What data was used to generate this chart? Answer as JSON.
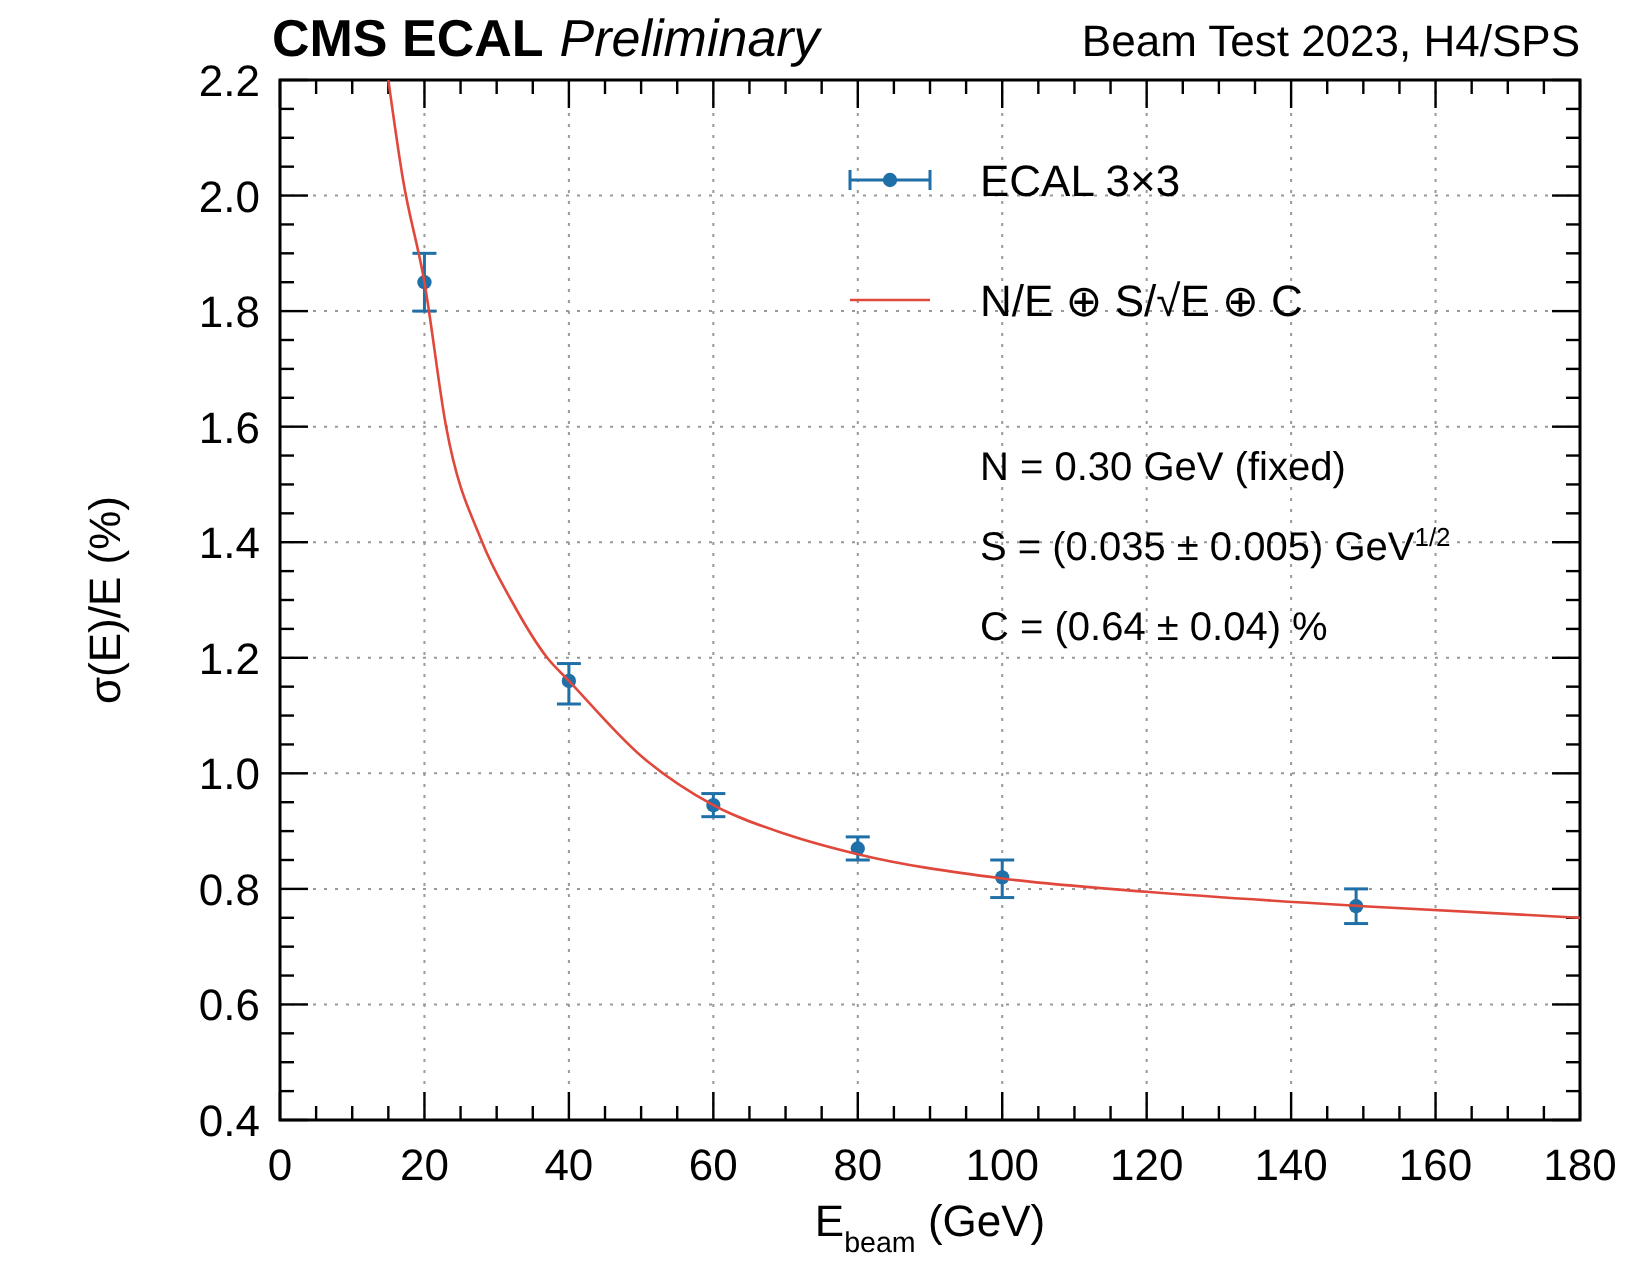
{
  "chart_data": {
    "type": "scatter",
    "title": "CMS ECAL",
    "subtitle": "Preliminary",
    "xlabel": "E$_{beam}$ (GeV)",
    "ylabel": "σ(E)/E (%)",
    "xlim": [
      0,
      180
    ],
    "xticks": [
      0,
      20,
      40,
      60,
      80,
      100,
      120,
      140,
      160,
      180
    ],
    "ylim": [
      0.4,
      2.2
    ],
    "yticks": [
      {
        "value": 0.4,
        "label": "0.4"
      },
      {
        "value": 0.6,
        "label": "0.6"
      },
      {
        "value": 0.8,
        "label": "0.8"
      },
      {
        "value": 1.0,
        "label": "1.0"
      },
      {
        "value": 1.2,
        "label": "1.2"
      },
      {
        "value": 1.4,
        "label": "1.4"
      },
      {
        "value": 1.6,
        "label": "1.6"
      },
      {
        "value": 1.8,
        "label": "1.8"
      },
      {
        "value": 2.0,
        "label": "2.0"
      },
      {
        "value": 2.2,
        "label": "2.2"
      }
    ],
    "grid": true,
    "legend": "top right",
    "series": [
      {
        "name": "ECAL 3×3",
        "marker": "circle",
        "color": "#1f6fa8",
        "x": [
          20,
          40,
          60,
          80,
          100,
          149
        ],
        "values": [
          1.85,
          1.16,
          0.945,
          0.87,
          0.82,
          0.77
        ],
        "errors": [
          0.05,
          [
            1.12,
            1.19
          ],
          0.02,
          0.02,
          [
            0.785,
            0.85
          ],
          0.03
        ]
      },
      {
        "name": "N/E ⊕ S/√E ⊕ C",
        "type": "line",
        "color": "#e0483c",
        "line_style": "solid",
        "x": [
          15,
          17,
          20,
          23,
          28,
          32,
          37,
          40,
          50,
          60,
          70,
          80,
          100,
          120,
          150,
          180
        ],
        "values": [
          2.2,
          2.03,
          1.85,
          1.6,
          1.4,
          1.3,
          1.2,
          1.16,
          1.03,
          0.945,
          0.895,
          0.86,
          0.818,
          0.795,
          0.77,
          0.75
        ]
      }
    ],
    "annotations": [
      "Beam Test 2023, H4/SPS",
      "N = 0.30 GeV (fixed)",
      "S = (0.035 ± 0.005) GeV$^{1/2}$",
      "C = (0.64 ± 0.04) %"
    ]
  }
}
